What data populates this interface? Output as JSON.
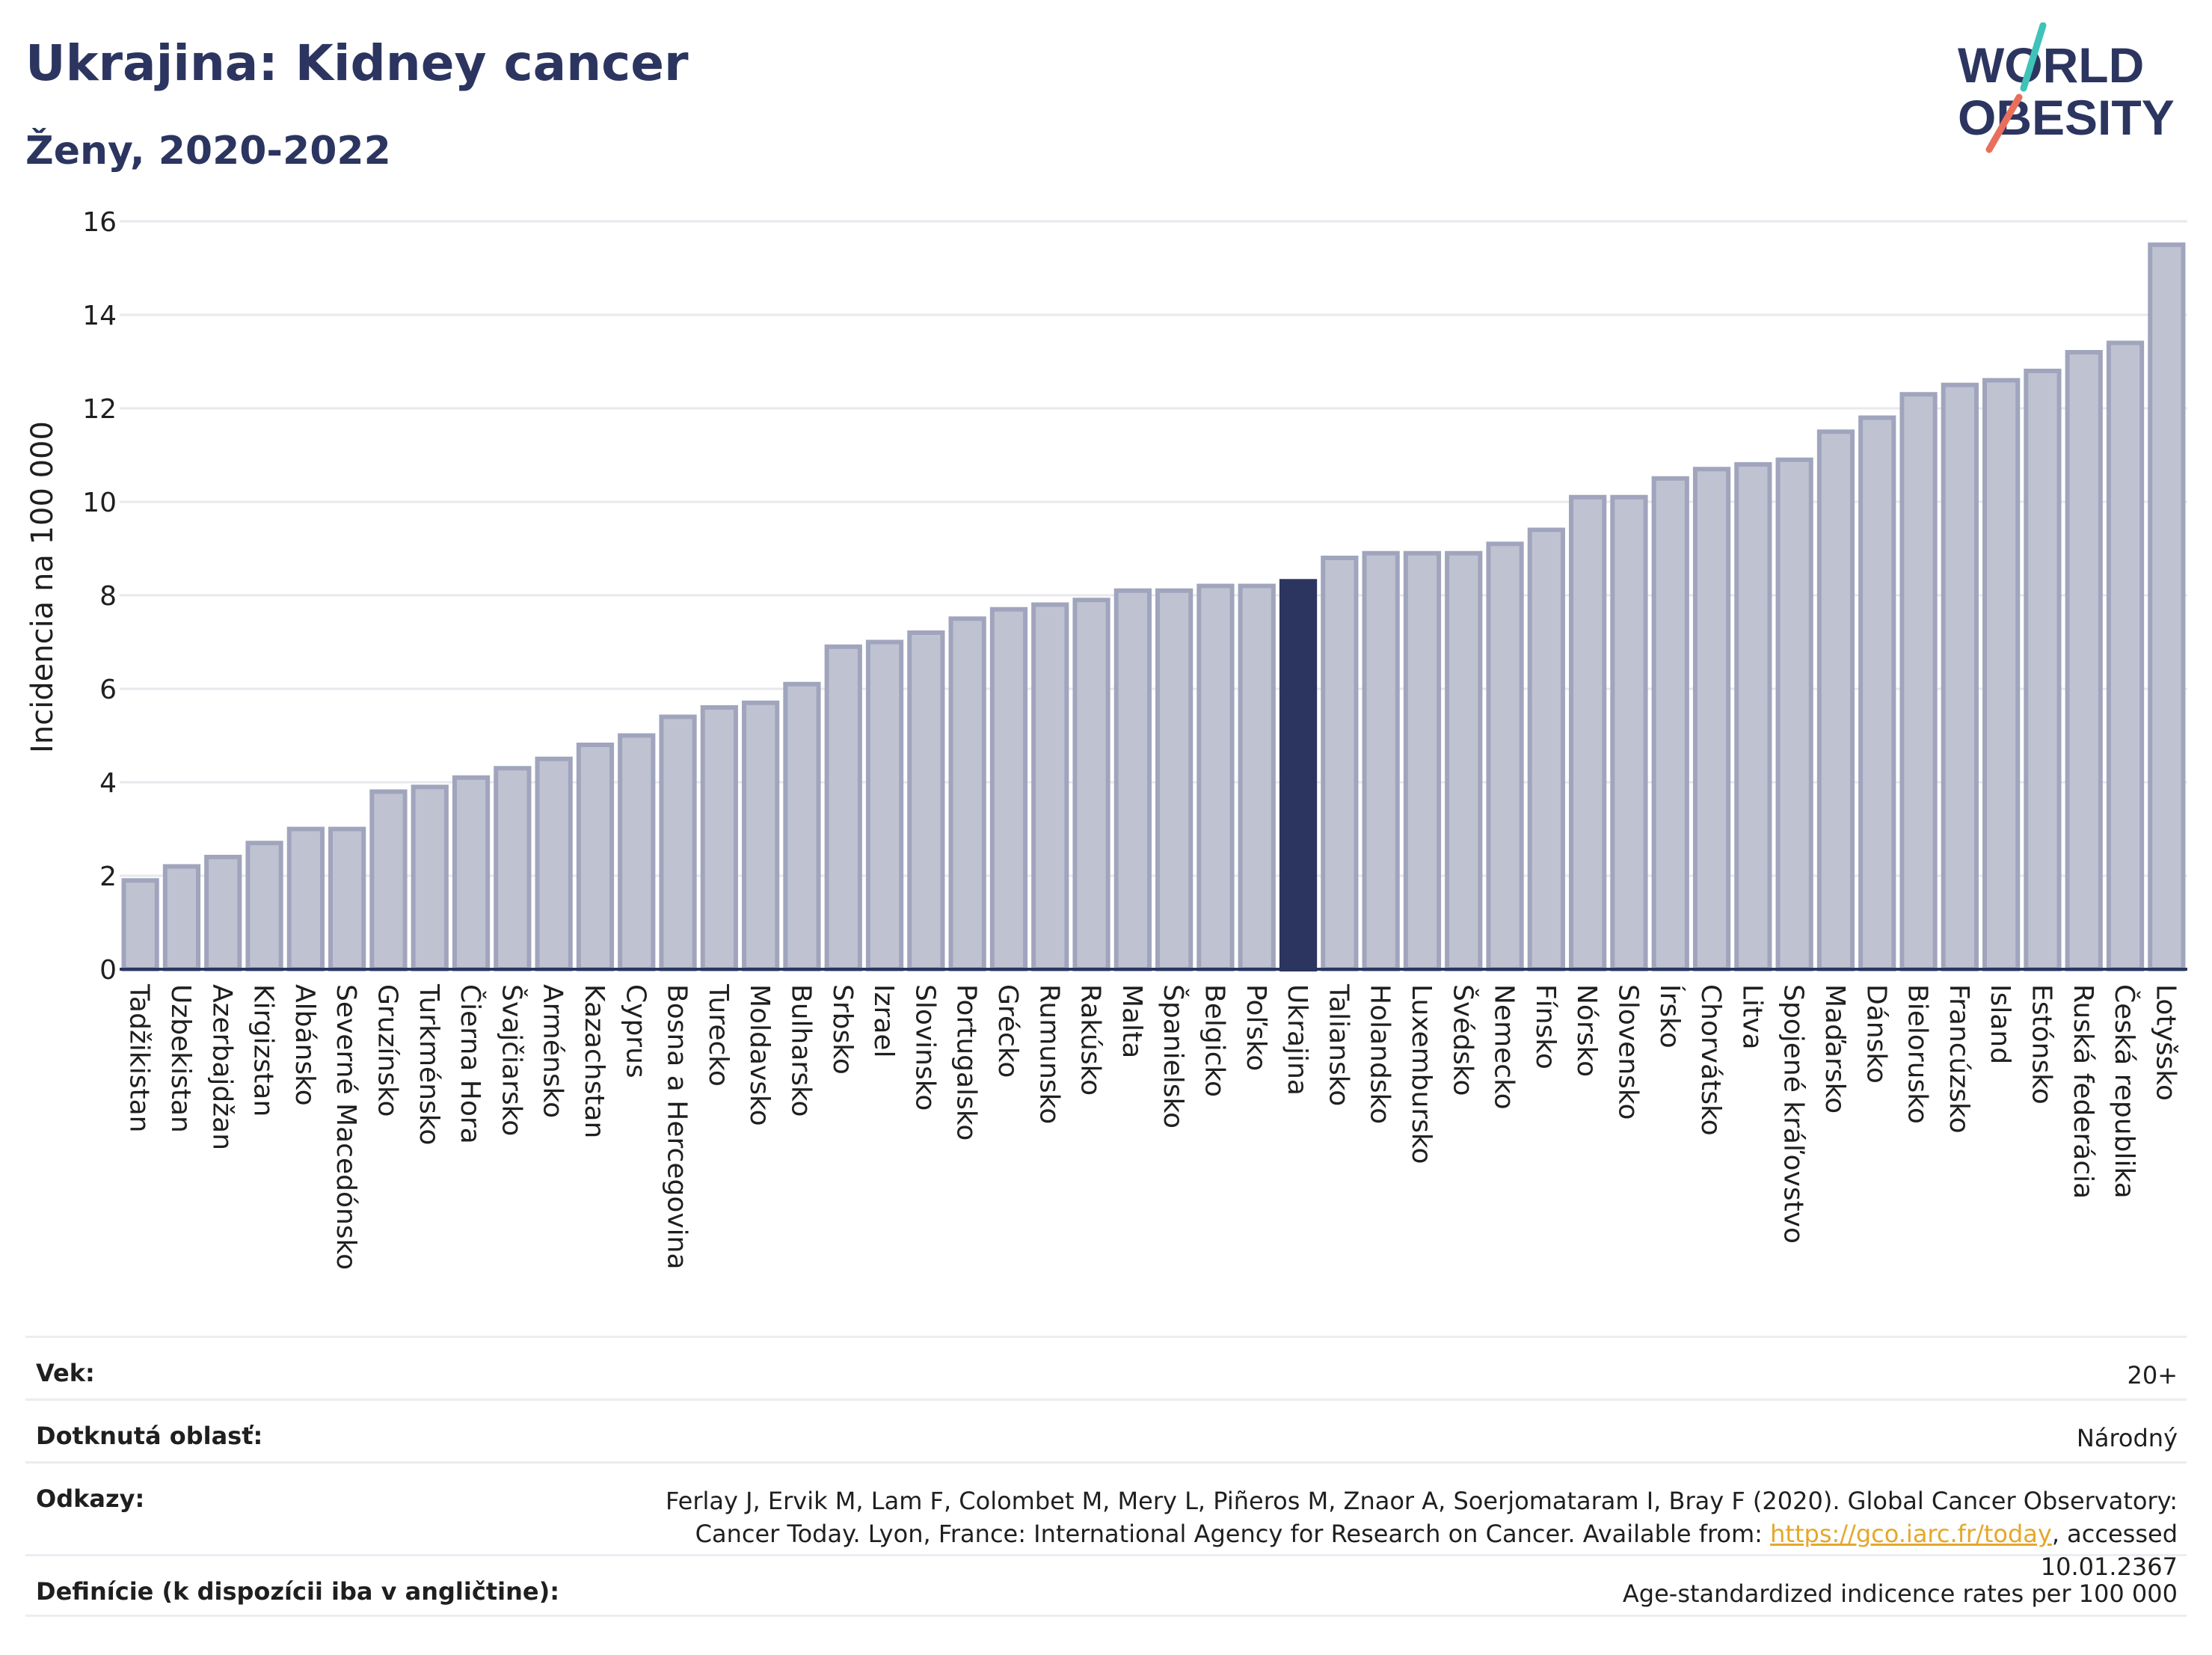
{
  "title": "Ukrajina: Kidney cancer",
  "subtitle": "Ženy, 2020-2022",
  "logo": {
    "line1": "WORLD",
    "line2": "OBESITY"
  },
  "colors": {
    "bar": "#bfc3d1",
    "bar_edge": "#a0a5bd",
    "highlight": "#2b3560",
    "title": "#2b3560",
    "link": "#e5a72a",
    "grid": "#e8e8ee"
  },
  "chart_data": {
    "type": "bar",
    "ylabel": "Incidencia na 100 000",
    "ylim": [
      0,
      16
    ],
    "yticks": [
      0,
      2,
      4,
      6,
      8,
      10,
      12,
      14,
      16
    ],
    "grid": true,
    "highlight": "Ukrajina",
    "categories": [
      "Tadžikistan",
      "Uzbekistan",
      "Azerbajdžan",
      "Kirgizstan",
      "Albánsko",
      "Severné Macedónsko",
      "Gruzínsko",
      "Turkménsko",
      "Čierna Hora",
      "Švajčiarsko",
      "Arménsko",
      "Kazachstan",
      "Cyprus",
      "Bosna a Hercegovina",
      "Turecko",
      "Moldavsko",
      "Bulharsko",
      "Srbsko",
      "Izrael",
      "Slovinsko",
      "Portugalsko",
      "Grécko",
      "Rumunsko",
      "Rakúsko",
      "Malta",
      "Španielsko",
      "Belgicko",
      "Poľsko",
      "Ukrajina",
      "Taliansko",
      "Holandsko",
      "Luxembursko",
      "Švédsko",
      "Nemecko",
      "Fínsko",
      "Nórsko",
      "Slovensko",
      "Írsko",
      "Chorvátsko",
      "Litva",
      "Spojené kráľovstvo",
      "Maďarsko",
      "Dánsko",
      "Bielorusko",
      "Francúzsko",
      "Island",
      "Estónsko",
      "Ruská federácia",
      "Česká republika",
      "Lotyšsko"
    ],
    "values": [
      1.9,
      2.2,
      2.4,
      2.7,
      3.0,
      3.0,
      3.8,
      3.9,
      4.1,
      4.3,
      4.5,
      4.8,
      5.0,
      5.4,
      5.6,
      5.7,
      6.1,
      6.9,
      7.0,
      7.2,
      7.5,
      7.7,
      7.8,
      7.9,
      8.1,
      8.1,
      8.2,
      8.2,
      8.3,
      8.8,
      8.9,
      8.9,
      8.9,
      9.1,
      9.4,
      10.1,
      10.1,
      10.5,
      10.7,
      10.8,
      10.9,
      11.5,
      11.8,
      12.3,
      12.5,
      12.6,
      12.8,
      13.2,
      13.4,
      15.5
    ]
  },
  "info": [
    {
      "label": "Vek:",
      "value": "20+"
    },
    {
      "label": "Dotknutá oblasť:",
      "value": "Národný"
    },
    {
      "label": "Odkazy:",
      "value_text": "Ferlay J, Ervik M, Lam F, Colombet M, Mery L, Piñeros M, Znaor A, Soerjomataram I, Bray F (2020). Global Cancer Observatory: Cancer Today. Lyon, France: International Agency for Research on Cancer. Available from: ",
      "link": "https://gco.iarc.fr/today",
      "suffix": ", accessed 10.01.2367"
    },
    {
      "label": "Definície (k dispozícii iba v angličtine):",
      "value": "Age-standardized indicence rates per 100 000"
    }
  ]
}
